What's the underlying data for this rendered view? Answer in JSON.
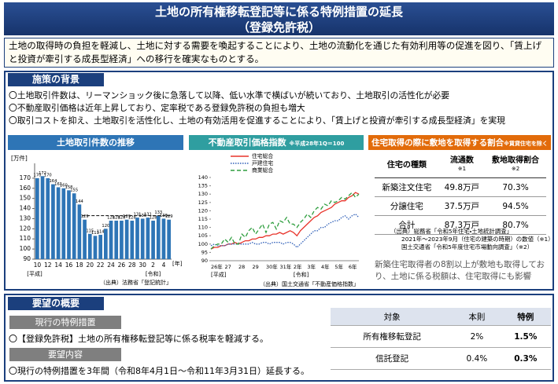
{
  "header": {
    "title": "土地の所有権移転登記等に係る特例措置の延長",
    "subtitle": "（登録免許税）"
  },
  "intro": "土地の取得時の負担を軽減し、土地に対する需要を喚起することにより、土地の流動化を通じた有効利用等の促進を図り、「賃上げと投資が牽引する成長型経済」への移行を確実なものとする。",
  "background": {
    "heading": "施策の背景",
    "items": [
      "〇土地取引件数は、リーマンショック後に急落して以降、低い水準で横ばいが続いており、土地取引の活性化が必要",
      "〇不動産取引価格は近年上昇しており、定率税である登録免許税の負担も増大",
      "〇取引コストを抑え、土地取引を活性化し、土地の有効活用を促進することにより、「賃上げと投資が牽引する成長型経済」を実現"
    ]
  },
  "chart_data": [
    {
      "type": "bar",
      "title": "土地取引件数の推移",
      "unit": "[万件]",
      "categories": [
        "10",
        null,
        "12",
        null,
        "14",
        null,
        "16",
        null,
        "18",
        null,
        "20",
        null,
        "22",
        null,
        "24",
        null,
        "26",
        null,
        "28",
        null,
        "30",
        null,
        "2",
        null,
        "4",
        null
      ],
      "values": [
        170,
        172,
        170,
        164,
        161,
        160,
        158,
        155,
        144,
        129,
        115,
        113,
        114,
        120,
        128,
        128,
        128,
        129,
        128,
        131,
        130,
        131,
        128,
        133,
        130,
        129
      ],
      "color": "#2e75b6",
      "ylim": [
        90,
        180
      ],
      "yticks": [
        90,
        100,
        110,
        120,
        130,
        140,
        150,
        160,
        170
      ],
      "reference_line": 133,
      "era_labels": [
        "[平成]",
        "[令和]"
      ],
      "x_unit": "[年]",
      "source": "（出典）法務省「登記統計」"
    },
    {
      "type": "line",
      "title": "不動産取引価格指数",
      "note": "※平成28年1Q＝100",
      "categories": [
        "26年",
        null,
        null,
        null,
        "27",
        null,
        null,
        null,
        "28",
        null,
        null,
        null,
        "29",
        null,
        null,
        null,
        "30年",
        null,
        null,
        null,
        "31年",
        null,
        null,
        null,
        "2年",
        null,
        null,
        null,
        "3年",
        null,
        null,
        null,
        "4年",
        null,
        null,
        null,
        "5年",
        null,
        null,
        null,
        "6年",
        null,
        null,
        null
      ],
      "series": [
        {
          "name": "住宅総合",
          "color": "#e8332a",
          "dash": "solid",
          "values": [
            97,
            98,
            98,
            99,
            99,
            100,
            100,
            101,
            100,
            101,
            102,
            102,
            103,
            103,
            104,
            104,
            105,
            105,
            106,
            106,
            107,
            106,
            107,
            108,
            107,
            105,
            108,
            110,
            112,
            114,
            116,
            117,
            119,
            120,
            121,
            122,
            124,
            125,
            126,
            126,
            128,
            129,
            131,
            130
          ]
        },
        {
          "name": "戸建住宅",
          "color": "#2f5fb8",
          "dash": "dotted",
          "values": [
            99,
            100,
            99,
            99,
            99,
            100,
            100,
            100,
            100,
            100,
            100,
            100,
            101,
            100,
            100,
            101,
            101,
            100,
            101,
            101,
            101,
            100,
            101,
            101,
            100,
            98,
            100,
            102,
            104,
            106,
            108,
            108,
            110,
            110,
            112,
            113,
            114,
            114,
            116,
            117,
            115,
            117,
            118,
            116
          ]
        },
        {
          "name": "商業総合",
          "color": "#2e9e3e",
          "dash": "dashed",
          "values": [
            97,
            99,
            100,
            100,
            103,
            101,
            104,
            100,
            100,
            106,
            104,
            108,
            110,
            106,
            109,
            112,
            107,
            112,
            113,
            109,
            114,
            113,
            116,
            112,
            112,
            110,
            113,
            115,
            118,
            116,
            120,
            122,
            121,
            124,
            123,
            126,
            125,
            126,
            128,
            127,
            129,
            131,
            128,
            130
          ]
        }
      ],
      "ylim": [
        90,
        140
      ],
      "yticks": [
        90,
        95,
        100,
        105,
        110,
        115,
        120,
        125,
        130,
        135,
        140
      ],
      "era_labels": [
        "[平成]",
        "[令和]"
      ],
      "source": "（出典）国土交通省「不動産価格指数」"
    }
  ],
  "housing_table": {
    "title": "住宅取得の際に敷地を取得する割合",
    "note": "※賃貸住宅を除く",
    "columns": [
      {
        "text": "住宅の種類"
      },
      {
        "text": "流通数",
        "note": "※1"
      },
      {
        "text": "敷地取得割合",
        "note": "※2"
      }
    ],
    "rows": [
      [
        "新築注文住宅",
        "49.8万戸",
        "70.3%"
      ],
      [
        "分譲住宅",
        "37.5万戸",
        "94.5%"
      ],
      [
        "合計",
        "87.3万戸",
        "80.7%"
      ]
    ],
    "sources": [
      "（出典）総務省「令和5年住宅・土地統計調査」",
      "2021年～2023年9月（住宅の建築の時期）の数値（※1）",
      "国土交通省「令和5年度住宅市場動向調査」（※2）"
    ],
    "remark": "新築住宅取得者の8割以上が敷地も取得しており、土地に係る税額は、住宅取得にも影響"
  },
  "request": {
    "heading": "要望の概要",
    "current_label": "現行の特例措置",
    "current_text": "〇【登録免許税】土地の所有権移転登記等に係る税率を軽減する。",
    "proposal_label": "要望内容",
    "proposal_text": "〇現行の特例措置を3年間（令和8年4月1日～令和11年3月31日）延長する。",
    "table": {
      "columns": [
        "対象",
        "本則",
        "特例"
      ],
      "rows": [
        [
          "所有権移転登記",
          "2%",
          "1.5%"
        ],
        [
          "信託登記",
          "0.4%",
          "0.3%"
        ]
      ]
    }
  }
}
